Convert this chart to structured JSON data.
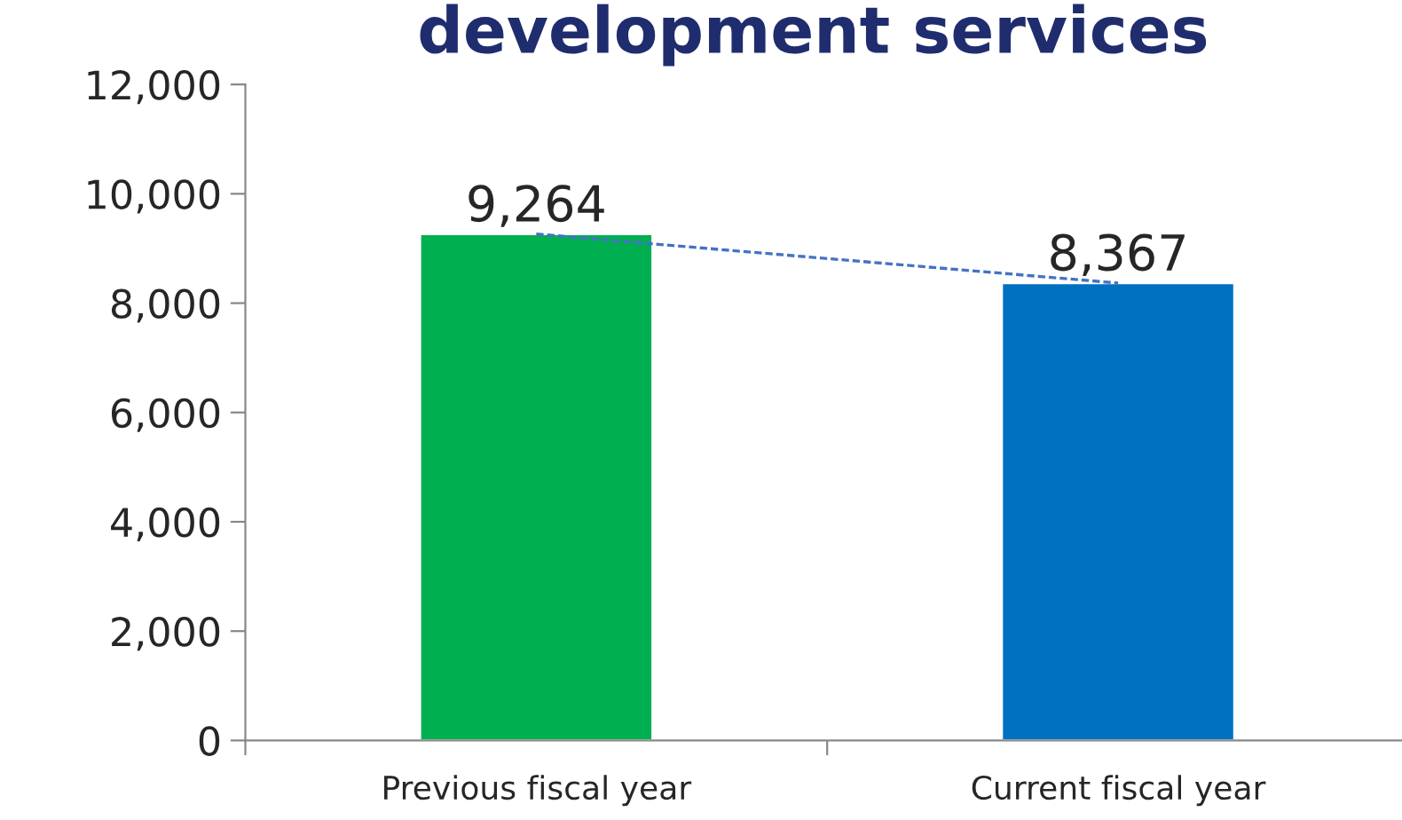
{
  "chart_data": {
    "type": "bar",
    "title": "development services",
    "categories": [
      "Previous fiscal year",
      "Current fiscal year"
    ],
    "series": [
      {
        "colors": [
          "#00b050",
          "#0070c0"
        ],
        "values": [
          9264,
          8367
        ]
      },
      {
        "type": "line",
        "color": "#4472c4",
        "values": [
          9264,
          8367
        ],
        "line_style": "dashed",
        "marker": "none"
      }
    ],
    "ylim": [
      0,
      12000
    ],
    "yticks": [
      {
        "value": 0,
        "label": "0"
      },
      {
        "value": 2000,
        "label": "2,000"
      },
      {
        "value": 4000,
        "label": "4,000"
      },
      {
        "value": 6000,
        "label": "6,000"
      },
      {
        "value": 8000,
        "label": "8,000"
      },
      {
        "value": 10000,
        "label": "10,000"
      },
      {
        "value": 12000,
        "label": "12,000"
      }
    ],
    "value_labels": [
      "9,264",
      "8,367"
    ],
    "grid": false
  }
}
